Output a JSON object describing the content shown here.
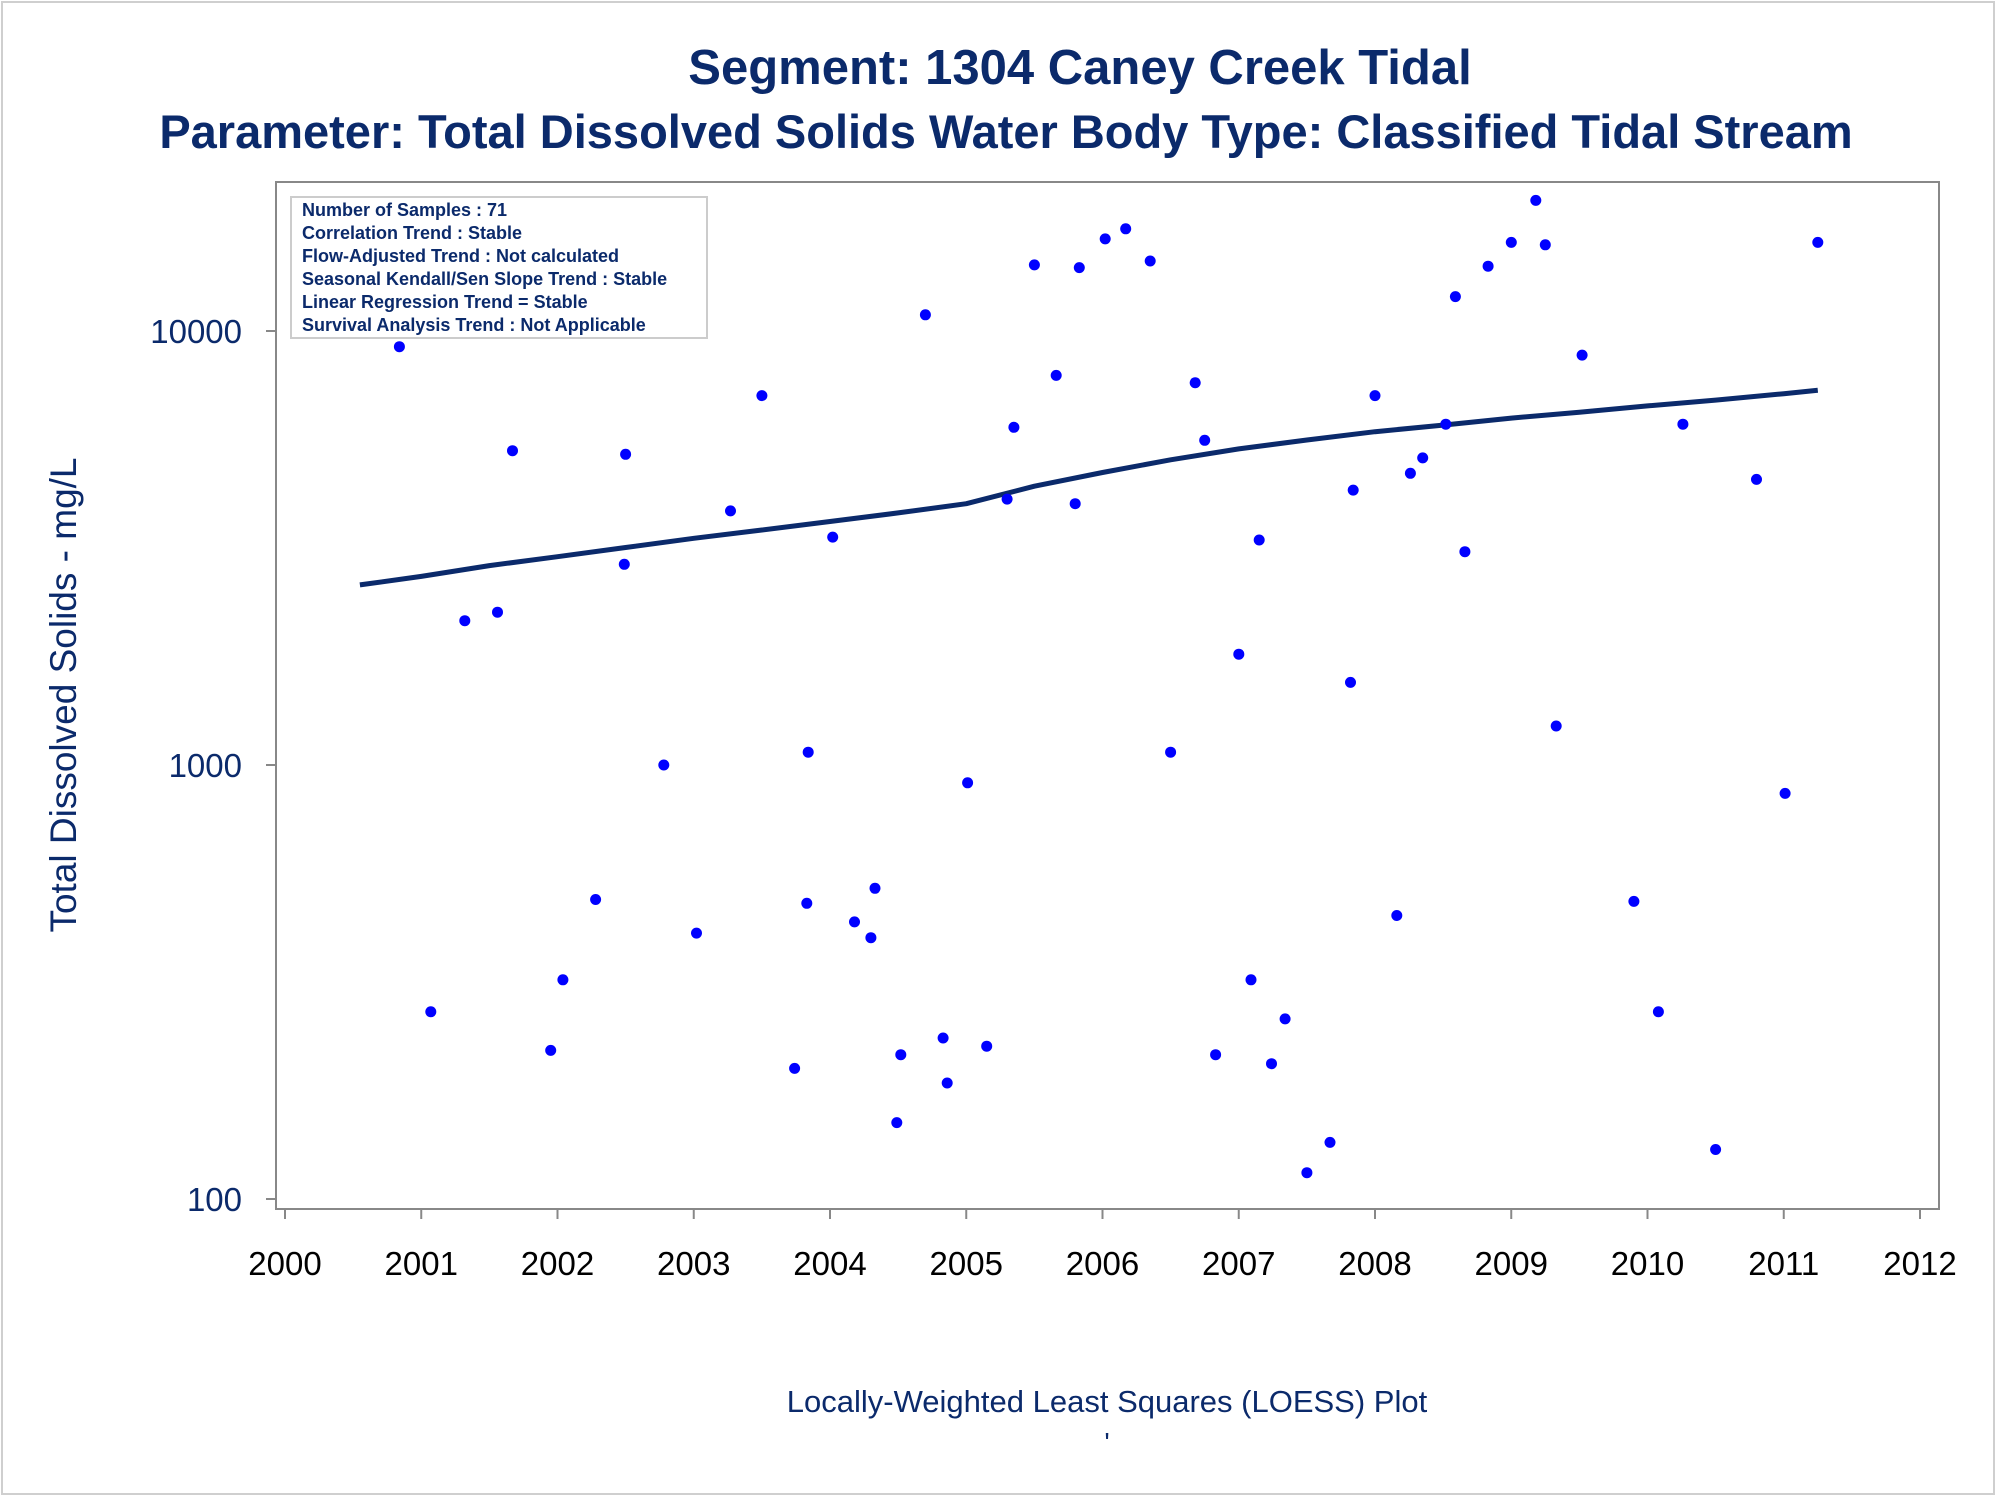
{
  "colors": {
    "title": "#0b2a6b",
    "points": "#0000ff",
    "trend_line": "#0b2a6b",
    "axis": "#888888",
    "stats_box_border": "#cccccc"
  },
  "stats_box": [
    "Number of Samples : 71",
    "Correlation Trend : Stable",
    "Flow-Adjusted Trend : Not calculated",
    "Seasonal Kendall/Sen Slope Trend : Stable",
    "Linear Regression Trend = Stable",
    "Survival Analysis Trend : Not Applicable"
  ],
  "footer_mark": "'",
  "chart_data": {
    "type": "scatter",
    "title": "Segment: 1304  Caney Creek Tidal",
    "subtitle": "Parameter: Total Dissolved Solids   Water Body Type: Classified Tidal Stream",
    "xlabel": "Locally-Weighted Least Squares (LOESS) Plot",
    "ylabel": "Total Dissolved Solids - mg/L",
    "xlim": [
      2000,
      2012
    ],
    "ylim": [
      100,
      30000
    ],
    "yscale": "log",
    "xticks": [
      "2000",
      "2001",
      "2002",
      "2003",
      "2004",
      "2005",
      "2006",
      "2007",
      "2008",
      "2009",
      "2010",
      "2011",
      "2012"
    ],
    "yticks": [
      "100",
      "1000",
      "10000"
    ],
    "grid": false,
    "legend": "none",
    "series": [
      {
        "kind": "points",
        "x": [
          2000.55,
          2000.84,
          2001.07,
          2001.32,
          2001.56,
          2001.67,
          2001.95,
          2002.04,
          2002.28,
          2002.49,
          2002.5,
          2002.78,
          2003.02,
          2003.27,
          2003.5,
          2003.74,
          2003.83,
          2003.84,
          2004.02,
          2004.18,
          2004.3,
          2004.33,
          2004.49,
          2004.52,
          2004.7,
          2004.83,
          2004.86,
          2005.01,
          2005.15,
          2005.3,
          2005.35,
          2005.5,
          2005.66,
          2005.8,
          2005.83,
          2006.02,
          2006.17,
          2006.35,
          2006.5,
          2006.68,
          2006.75,
          2006.83,
          2007.0,
          2007.09,
          2007.15,
          2007.24,
          2007.34,
          2007.5,
          2007.67,
          2007.82,
          2007.84,
          2008.16,
          2008.0,
          2008.26,
          2008.35,
          2008.52,
          2008.59,
          2008.66,
          2008.83,
          2009.0,
          2009.18,
          2009.25,
          2009.33,
          2009.52,
          2009.9,
          2010.08,
          2010.26,
          2010.5,
          2010.8,
          2011.01,
          2011.25
        ],
        "y": [
          10800,
          9200,
          270,
          2150,
          2250,
          5300,
          220,
          320,
          490,
          2900,
          5200,
          1000,
          410,
          3850,
          7100,
          200,
          480,
          1070,
          3350,
          435,
          400,
          520,
          150,
          215,
          10900,
          235,
          185,
          910,
          225,
          4100,
          6000,
          14200,
          7900,
          4000,
          14000,
          16300,
          17200,
          14500,
          1070,
          7600,
          5600,
          215,
          1800,
          320,
          3300,
          205,
          260,
          115,
          135,
          1550,
          4300,
          450,
          7100,
          4700,
          5100,
          6100,
          12000,
          3100,
          14100,
          16000,
          20000,
          15800,
          1230,
          8800,
          485,
          270,
          6100,
          130,
          4550,
          860,
          16000
        ]
      }
    ],
    "trend": {
      "name": "LOESS",
      "x": [
        2000.55,
        2001.0,
        2001.5,
        2002.0,
        2002.5,
        2003.0,
        2003.5,
        2004.0,
        2004.5,
        2005.0,
        2005.5,
        2006.0,
        2006.5,
        2007.0,
        2007.5,
        2008.0,
        2008.5,
        2009.0,
        2009.5,
        2010.0,
        2010.5,
        2011.0,
        2011.25
      ],
      "y": [
        2600,
        2720,
        2880,
        3020,
        3170,
        3330,
        3480,
        3640,
        3810,
        4000,
        4390,
        4720,
        5050,
        5350,
        5610,
        5860,
        6070,
        6300,
        6500,
        6720,
        6930,
        7170,
        7300
      ]
    }
  }
}
